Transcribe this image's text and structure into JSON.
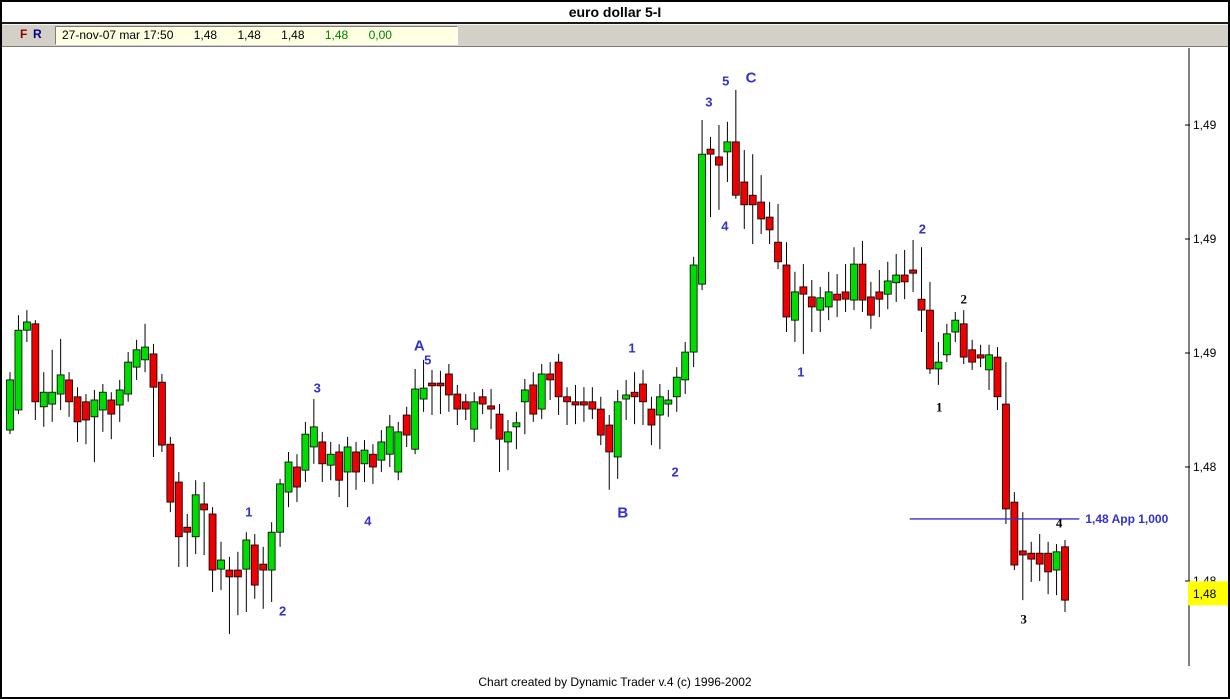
{
  "window": {
    "title": "euro dollar 5-I"
  },
  "toolbar": {
    "buttons": [
      {
        "label": "F",
        "color": "#8b0000"
      },
      {
        "label": "R",
        "color": "#00008b"
      }
    ],
    "quote": {
      "datetime": "27-nov-07 mar 17:50",
      "values": [
        {
          "text": "1,48",
          "color": "#000000"
        },
        {
          "text": "1,48",
          "color": "#000000"
        },
        {
          "text": "1,48",
          "color": "#000000"
        },
        {
          "text": "1,48",
          "color": "#008000"
        },
        {
          "text": "0,00",
          "color": "#008000"
        }
      ],
      "bg": "#ffffe1"
    }
  },
  "footer": {
    "text": "Chart created by Dynamic Trader v.4  (c) 1996-2002"
  },
  "chart_data": {
    "type": "candlestick",
    "title": "euro dollar 5-I",
    "colors": {
      "up": "#00db00",
      "down": "#ec0000",
      "wick": "#000000",
      "blue": "#3232cd",
      "axis": "#000000",
      "price_flag_bg": "#ffff00"
    },
    "price_axis": {
      "side": "right",
      "ticks": [
        {
          "price": 1.495,
          "label": "1,49"
        },
        {
          "price": 1.4925,
          "label": "1,49"
        },
        {
          "price": 1.49,
          "label": "1,49"
        },
        {
          "price": 1.4875,
          "label": "1,48"
        },
        {
          "price": 1.485,
          "label": "1,48"
        }
      ],
      "current_price": {
        "price": 1.48473,
        "label": "1,48"
      }
    },
    "app_line": {
      "price": 1.48636,
      "i1": 106.6,
      "i2": 126.7,
      "label": "1,48 App 1,000"
    },
    "wave_labels": [
      {
        "text": "1",
        "i": 28.3,
        "price": 1.48651,
        "color": "blue",
        "size": "sm"
      },
      {
        "text": "2",
        "i": 32.3,
        "price": 1.48434,
        "color": "blue",
        "size": "sm"
      },
      {
        "text": "3",
        "i": 36.4,
        "price": 1.48923,
        "color": "blue",
        "size": "sm"
      },
      {
        "text": "4",
        "i": 42.4,
        "price": 1.48632,
        "color": "blue",
        "size": "sm"
      },
      {
        "text": "A",
        "i": 48.5,
        "price": 1.49015,
        "color": "blue",
        "size": "lg"
      },
      {
        "text": "5",
        "i": 49.5,
        "price": 1.48985,
        "color": "blue",
        "size": "sm"
      },
      {
        "text": "1",
        "i": 73.7,
        "price": 1.49011,
        "color": "blue",
        "size": "sm"
      },
      {
        "text": "B",
        "i": 72.6,
        "price": 1.48649,
        "color": "blue",
        "size": "lg"
      },
      {
        "text": "2",
        "i": 78.8,
        "price": 1.48739,
        "color": "blue",
        "size": "sm"
      },
      {
        "text": "3",
        "i": 82.8,
        "price": 1.4955,
        "color": "blue",
        "size": "sm"
      },
      {
        "text": "5",
        "i": 84.8,
        "price": 1.49596,
        "color": "blue",
        "size": "sm"
      },
      {
        "text": "C",
        "i": 87.8,
        "price": 1.49603,
        "color": "blue",
        "size": "lg"
      },
      {
        "text": "4",
        "i": 84.7,
        "price": 1.49279,
        "color": "blue",
        "size": "sm"
      },
      {
        "text": "1",
        "i": 93.7,
        "price": 1.48958,
        "color": "blue",
        "size": "sm"
      },
      {
        "text": "2",
        "i": 108.1,
        "price": 1.49272,
        "color": "blue",
        "size": "sm"
      },
      {
        "text": "2",
        "i": 113.0,
        "price": 1.49118,
        "color": "black",
        "size": "sm"
      },
      {
        "text": "1",
        "i": 110.1,
        "price": 1.48882,
        "color": "black",
        "size": "sm"
      },
      {
        "text": "4",
        "i": 124.3,
        "price": 1.48627,
        "color": "black",
        "size": "sm"
      },
      {
        "text": "3",
        "i": 120.1,
        "price": 1.48417,
        "color": "black",
        "size": "sm"
      }
    ],
    "candles": [
      [
        1.48831,
        1.48958,
        1.48822,
        1.48941
      ],
      [
        1.48875,
        1.49083,
        1.48866,
        1.4905
      ],
      [
        1.4905,
        1.49094,
        1.49024,
        1.49068
      ],
      [
        1.49064,
        1.49072,
        1.48853,
        1.48893
      ],
      [
        1.48882,
        1.48958,
        1.48838,
        1.48914
      ],
      [
        1.48888,
        1.49007,
        1.48849,
        1.48914
      ],
      [
        1.4891,
        1.49031,
        1.48875,
        1.48952
      ],
      [
        1.48941,
        1.48958,
        1.4886,
        1.48893
      ],
      [
        1.48904,
        1.48925,
        1.48805,
        1.48849
      ],
      [
        1.48893,
        1.4891,
        1.488,
        1.48853
      ],
      [
        1.4886,
        1.48919,
        1.48761,
        1.48897
      ],
      [
        1.48875,
        1.48932,
        1.48827,
        1.48914
      ],
      [
        1.48897,
        1.48914,
        1.48811,
        1.48866
      ],
      [
        1.48886,
        1.48941,
        1.48849,
        1.48919
      ],
      [
        1.4891,
        1.49002,
        1.48893,
        1.4898
      ],
      [
        1.48969,
        1.49029,
        1.48941,
        1.49007
      ],
      [
        1.48985,
        1.49064,
        1.48958,
        1.49013
      ],
      [
        1.48998,
        1.4902,
        1.48772,
        1.48925
      ],
      [
        1.48936,
        1.48954,
        1.48783,
        1.48798
      ],
      [
        1.488,
        1.48816,
        1.48651,
        1.48673
      ],
      [
        1.48717,
        1.48739,
        1.48531,
        1.48597
      ],
      [
        1.48618,
        1.48647,
        1.48531,
        1.48607
      ],
      [
        1.48597,
        1.48721,
        1.48559,
        1.48689
      ],
      [
        1.48669,
        1.48717,
        1.48557,
        1.48656
      ],
      [
        1.48647,
        1.48662,
        1.48476,
        1.48524
      ],
      [
        1.48526,
        1.48586,
        1.4848,
        1.48546
      ],
      [
        1.48524,
        1.48553,
        1.48384,
        1.48509
      ],
      [
        1.48524,
        1.48564,
        1.48425,
        1.48509
      ],
      [
        1.48526,
        1.48607,
        1.48432,
        1.4859
      ],
      [
        1.48579,
        1.48603,
        1.48461,
        1.48491
      ],
      [
        1.48537,
        1.48575,
        1.48439,
        1.48524
      ],
      [
        1.48524,
        1.48629,
        1.48454,
        1.48607
      ],
      [
        1.48607,
        1.48724,
        1.48575,
        1.48713
      ],
      [
        1.48695,
        1.48783,
        1.48662,
        1.48761
      ],
      [
        1.4875,
        1.48778,
        1.48673,
        1.48706
      ],
      [
        1.48743,
        1.48849,
        1.48717,
        1.48822
      ],
      [
        1.48794,
        1.48899,
        1.48757,
        1.48838
      ],
      [
        1.48805,
        1.48827,
        1.48717,
        1.48757
      ],
      [
        1.48754,
        1.48805,
        1.48721,
        1.48778
      ],
      [
        1.48783,
        1.488,
        1.48684,
        1.48721
      ],
      [
        1.48739,
        1.48816,
        1.48662,
        1.48794
      ],
      [
        1.48783,
        1.48805,
        1.487,
        1.48739
      ],
      [
        1.48757,
        1.48809,
        1.48717,
        1.48787
      ],
      [
        1.48778,
        1.488,
        1.48713,
        1.4875
      ],
      [
        1.48765,
        1.48831,
        1.48739,
        1.48805
      ],
      [
        1.48778,
        1.48864,
        1.4875,
        1.48838
      ],
      [
        1.48739,
        1.48849,
        1.48721,
        1.48827
      ],
      [
        1.48864,
        1.48882,
        1.48794,
        1.4882
      ],
      [
        1.48789,
        1.48965,
        1.48778,
        1.48921
      ],
      [
        1.48899,
        1.48985,
        1.48871,
        1.48923
      ],
      [
        1.48934,
        1.48963,
        1.48864,
        1.48928
      ],
      [
        1.48934,
        1.48961,
        1.48866,
        1.48928
      ],
      [
        1.48954,
        1.48976,
        1.48871,
        1.48908
      ],
      [
        1.4891,
        1.4893,
        1.48842,
        1.48877
      ],
      [
        1.48893,
        1.4891,
        1.48853,
        1.48877
      ],
      [
        1.48833,
        1.48914,
        1.48805,
        1.48893
      ],
      [
        1.48904,
        1.48921,
        1.48866,
        1.48888
      ],
      [
        1.48884,
        1.48921,
        1.48833,
        1.48877
      ],
      [
        1.48866,
        1.48888,
        1.48739,
        1.48811
      ],
      [
        1.48805,
        1.48853,
        1.48743,
        1.48827
      ],
      [
        1.48838,
        1.48871,
        1.48789,
        1.48847
      ],
      [
        1.48893,
        1.48943,
        1.48822,
        1.48919
      ],
      [
        1.4893,
        1.48958,
        1.48849,
        1.48866
      ],
      [
        1.48877,
        1.48976,
        1.48855,
        1.48954
      ],
      [
        1.48954,
        1.4898,
        1.48897,
        1.48941
      ],
      [
        1.4898,
        1.48998,
        1.48864,
        1.48904
      ],
      [
        1.48904,
        1.48925,
        1.48842,
        1.48893
      ],
      [
        1.48893,
        1.4893,
        1.48844,
        1.48886
      ],
      [
        1.48893,
        1.48925,
        1.48849,
        1.48886
      ],
      [
        1.48893,
        1.48925,
        1.48855,
        1.48877
      ],
      [
        1.48877,
        1.48904,
        1.48798,
        1.4882
      ],
      [
        1.48842,
        1.48864,
        1.487,
        1.48783
      ],
      [
        1.48772,
        1.48919,
        1.48724,
        1.48893
      ],
      [
        1.48899,
        1.48941,
        1.48853,
        1.48908
      ],
      [
        1.48914,
        1.48958,
        1.48844,
        1.48904
      ],
      [
        1.48932,
        1.48963,
        1.48842,
        1.48893
      ],
      [
        1.48877,
        1.48904,
        1.48798,
        1.48842
      ],
      [
        1.48864,
        1.48932,
        1.48789,
        1.48904
      ],
      [
        1.48888,
        1.48919,
        1.4886,
        1.48897
      ],
      [
        1.48904,
        1.48969,
        1.48871,
        1.48947
      ],
      [
        1.48941,
        1.49024,
        1.4891,
        1.49002
      ],
      [
        1.49002,
        1.49211,
        1.48969,
        1.49193
      ],
      [
        1.49151,
        1.49511,
        1.49138,
        1.49436
      ],
      [
        1.49447,
        1.49474,
        1.49298,
        1.49436
      ],
      [
        1.4943,
        1.495,
        1.49314,
        1.49412
      ],
      [
        1.49441,
        1.49507,
        1.49375,
        1.49463
      ],
      [
        1.49463,
        1.49577,
        1.49338,
        1.49346
      ],
      [
        1.49375,
        1.49445,
        1.49272,
        1.49325
      ],
      [
        1.49346,
        1.49436,
        1.49239,
        1.49325
      ],
      [
        1.49331,
        1.4939,
        1.49261,
        1.49294
      ],
      [
        1.49298,
        1.49331,
        1.49239,
        1.4927
      ],
      [
        1.49243,
        1.49327,
        1.49184,
        1.492
      ],
      [
        1.49193,
        1.49243,
        1.49046,
        1.49079
      ],
      [
        1.49072,
        1.49178,
        1.49024,
        1.49134
      ],
      [
        1.49145,
        1.49195,
        1.48998,
        1.49129
      ],
      [
        1.49123,
        1.4916,
        1.49046,
        1.49101
      ],
      [
        1.49094,
        1.49145,
        1.49046,
        1.49121
      ],
      [
        1.49101,
        1.49178,
        1.49072,
        1.49134
      ],
      [
        1.49129,
        1.49173,
        1.49079,
        1.49116
      ],
      [
        1.49134,
        1.49195,
        1.4909,
        1.49118
      ],
      [
        1.49116,
        1.49232,
        1.49094,
        1.49195
      ],
      [
        1.49195,
        1.49246,
        1.4909,
        1.49116
      ],
      [
        1.49123,
        1.49156,
        1.49053,
        1.49083
      ],
      [
        1.49134,
        1.49182,
        1.49079,
        1.49118
      ],
      [
        1.49129,
        1.492,
        1.49096,
        1.49158
      ],
      [
        1.49154,
        1.49217,
        1.49112,
        1.49171
      ],
      [
        1.49171,
        1.49226,
        1.49118,
        1.49156
      ],
      [
        1.49182,
        1.49248,
        1.49134,
        1.49175
      ],
      [
        1.49118,
        1.49232,
        1.49046,
        1.49094
      ],
      [
        1.49094,
        1.49156,
        1.48954,
        1.48965
      ],
      [
        1.48965,
        1.49024,
        1.4893,
        1.4898
      ],
      [
        1.48996,
        1.49064,
        1.4898,
        1.49042
      ],
      [
        1.49046,
        1.4909,
        1.49024,
        1.49072
      ],
      [
        1.49064,
        1.49094,
        1.48976,
        1.48991
      ],
      [
        1.49007,
        1.49029,
        1.48963,
        1.4898
      ],
      [
        1.48996,
        1.49018,
        1.48969,
        1.48989
      ],
      [
        1.48963,
        1.49018,
        1.48919,
        1.48996
      ],
      [
        1.48991,
        1.49013,
        1.48875,
        1.48904
      ],
      [
        1.48888,
        1.4898,
        1.48625,
        1.48658
      ],
      [
        1.48673,
        1.48695,
        1.48524,
        1.48535
      ],
      [
        1.48566,
        1.48651,
        1.48458,
        1.48557
      ],
      [
        1.48561,
        1.48586,
        1.48498,
        1.48548
      ],
      [
        1.48561,
        1.48603,
        1.485,
        1.48537
      ],
      [
        1.48561,
        1.48586,
        1.48471,
        1.4852
      ],
      [
        1.48524,
        1.48581,
        1.48469,
        1.48564
      ],
      [
        1.48575,
        1.4859,
        1.48432,
        1.48458
      ]
    ]
  }
}
